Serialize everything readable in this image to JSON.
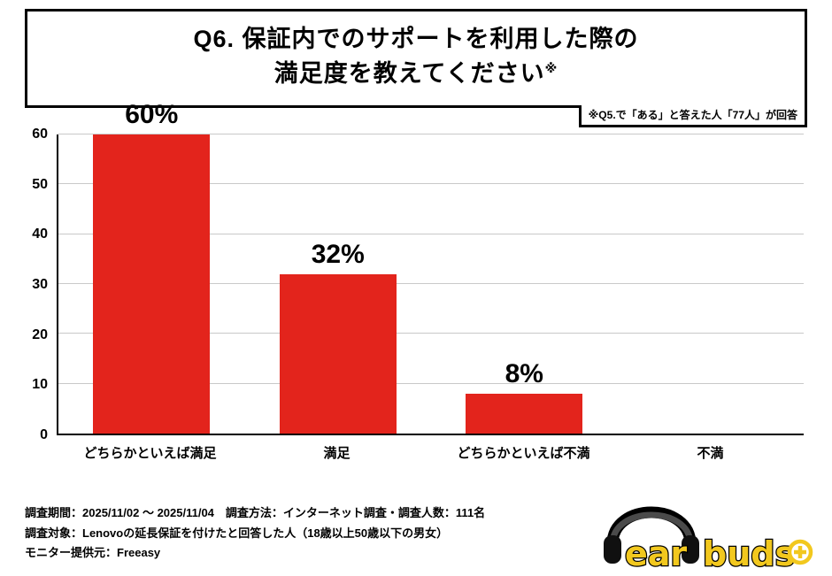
{
  "header": {
    "title_line1": "Q6. 保証内でのサポートを利用した際の",
    "title_line2": "満足度を教えてください",
    "title_mark": "※",
    "note": "※Q5.で「ある」と答えた人「77人」が回答"
  },
  "chart_data": {
    "type": "bar",
    "title": "Q6. 保証内でのサポートを利用した際の満足度を教えてください",
    "categories": [
      "どちらかといえば満足",
      "満足",
      "どちらかといえば不満",
      "不満"
    ],
    "values": [
      60,
      32,
      8,
      0
    ],
    "value_labels": [
      "60%",
      "32%",
      "8%",
      ""
    ],
    "unit": "%",
    "xlabel": "",
    "ylabel": "",
    "ylim": [
      0,
      60
    ],
    "yticks": [
      0,
      10,
      20,
      30,
      40,
      50,
      60
    ],
    "bar_color": "#e3241c",
    "grid": true,
    "legend": false
  },
  "footer": {
    "line1": "調査期間：2025/11/02 ～ 2025/11/04　調査方法：インターネット調査・調査人数：111名",
    "line2": "調査対象：Lenovoの延長保証を付けたと回答した人（18歳以上50歳以下の男女）",
    "line3": "モニター提供元：Freeasy"
  },
  "logo": {
    "word1": "ear",
    "word2": "buds",
    "accent_color": "#f2c81e"
  }
}
